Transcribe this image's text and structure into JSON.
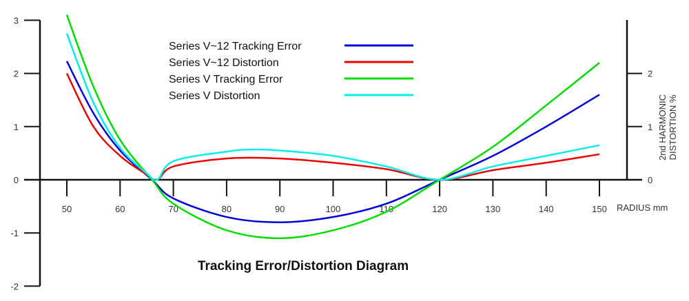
{
  "chart_data": {
    "type": "line",
    "title": "Tracking Error/Distortion Diagram",
    "xlabel": "RADIUS mm",
    "ylabel": "",
    "y2label_lines": [
      "2nd HARMONIC",
      "DISTORTION %"
    ],
    "xlim": [
      50,
      150
    ],
    "ylim": [
      -2,
      3
    ],
    "y2lim": [
      0,
      2
    ],
    "xticks": [
      50,
      60,
      70,
      80,
      90,
      100,
      110,
      120,
      130,
      140,
      150
    ],
    "yticks": [
      3,
      2,
      1,
      0,
      -1,
      -2
    ],
    "y2ticks": [
      2,
      1,
      0
    ],
    "grid": false,
    "legend": "top-center",
    "series": [
      {
        "name": "Series V~12 Tracking Error",
        "color": "#0000dd",
        "axis": "left",
        "x": [
          50,
          55,
          60,
          66,
          70,
          80,
          90,
          100,
          110,
          120,
          130,
          140,
          150
        ],
        "y": [
          2.23,
          1.25,
          0.55,
          0,
          -0.35,
          -0.7,
          -0.8,
          -0.7,
          -0.45,
          0,
          0.45,
          1.0,
          1.6
        ]
      },
      {
        "name": "Series V~12 Distortion",
        "color": "#ee0000",
        "axis": "right",
        "x": [
          50,
          55,
          60,
          65,
          67,
          70,
          80,
          90,
          100,
          110,
          120,
          130,
          140,
          150
        ],
        "y": [
          2.0,
          1.0,
          0.45,
          0.1,
          0,
          0.25,
          0.4,
          0.4,
          0.32,
          0.2,
          0,
          0.18,
          0.32,
          0.48
        ]
      },
      {
        "name": "Series V Tracking Error",
        "color": "#00dd00",
        "axis": "left",
        "x": [
          50,
          55,
          60,
          66,
          70,
          80,
          90,
          100,
          110,
          120,
          130,
          140,
          150
        ],
        "y": [
          3.1,
          1.75,
          0.75,
          0,
          -0.45,
          -0.95,
          -1.1,
          -0.95,
          -0.6,
          0,
          0.62,
          1.4,
          2.2
        ]
      },
      {
        "name": "Series V Distortion",
        "color": "#00eeee",
        "axis": "right",
        "x": [
          50,
          55,
          60,
          65,
          67,
          70,
          80,
          85,
          90,
          100,
          110,
          120,
          130,
          140,
          150
        ],
        "y": [
          2.75,
          1.45,
          0.6,
          0.12,
          0,
          0.35,
          0.53,
          0.57,
          0.55,
          0.45,
          0.25,
          0,
          0.25,
          0.45,
          0.65
        ]
      }
    ]
  }
}
